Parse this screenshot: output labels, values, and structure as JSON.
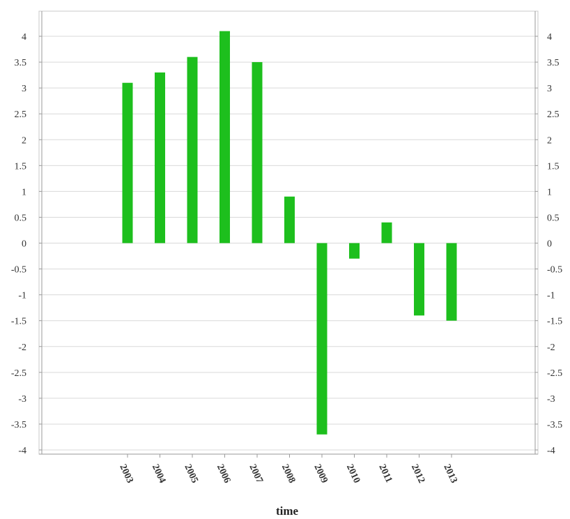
{
  "chart_data": {
    "type": "bar",
    "title": "",
    "xlabel": "time",
    "ylabel": "",
    "ylim": [
      -4,
      4
    ],
    "ystep": 0.5,
    "y_tick_labels": [
      "-4",
      "-3.5",
      "-3",
      "-2.5",
      "-2",
      "-1.5",
      "-1",
      "-0.5",
      "0",
      "0.5",
      "1",
      "1.5",
      "2",
      "2.5",
      "3",
      "3.5",
      "4"
    ],
    "categories": [
      "2003",
      "2004",
      "2005",
      "2006",
      "2007",
      "2008",
      "2009",
      "2010",
      "2011",
      "2012",
      "2013"
    ],
    "values": [
      3.1,
      3.3,
      3.6,
      4.1,
      3.5,
      0.9,
      -3.7,
      -0.3,
      0.4,
      -1.4,
      -1.5
    ],
    "bar_color": "#1dbf1d",
    "grid": true,
    "legend": "none"
  }
}
